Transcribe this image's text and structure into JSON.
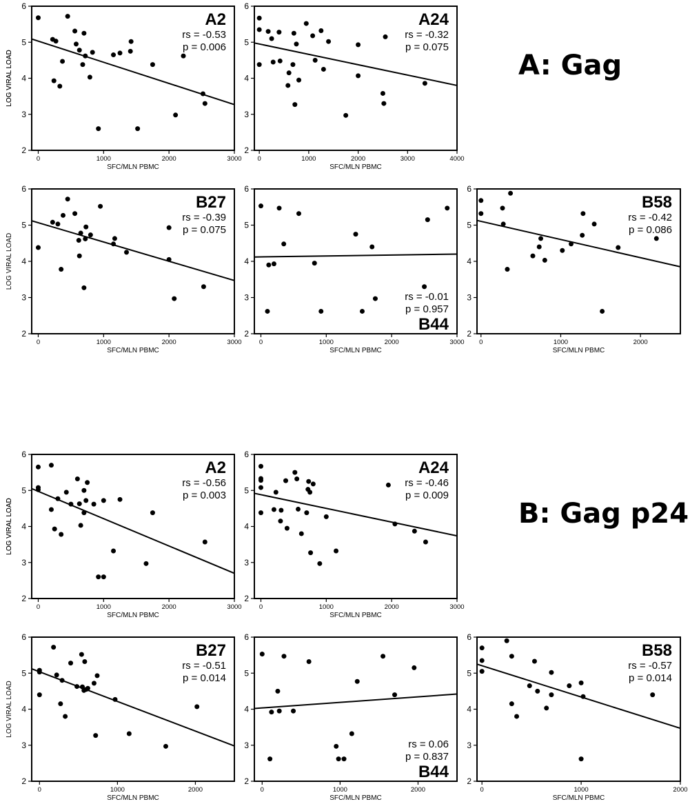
{
  "sections": {
    "a": {
      "title": "A: Gag"
    },
    "b": {
      "title": "B: Gag p24"
    }
  },
  "chart_data": [
    {
      "type": "scatter",
      "section": "A: Gag",
      "panel_label": "A2",
      "stats": [
        "rs = -0.53",
        "p = 0.006"
      ],
      "xlabel": "SFC/MLN PBMC",
      "ylabel": "LOG VIRAL LOAD",
      "xlim": [
        -100,
        3000
      ],
      "ylim": [
        2,
        6
      ],
      "xticks": [
        0,
        1000,
        2000,
        3000
      ],
      "yticks": [
        2,
        3,
        4,
        5,
        6
      ],
      "points": [
        [
          0,
          5.68
        ],
        [
          220,
          5.08
        ],
        [
          270,
          5.03
        ],
        [
          240,
          3.93
        ],
        [
          330,
          3.78
        ],
        [
          370,
          4.47
        ],
        [
          450,
          5.72
        ],
        [
          560,
          5.31
        ],
        [
          580,
          4.95
        ],
        [
          630,
          4.78
        ],
        [
          680,
          4.38
        ],
        [
          700,
          5.25
        ],
        [
          720,
          4.62
        ],
        [
          790,
          4.03
        ],
        [
          830,
          4.72
        ],
        [
          920,
          2.6
        ],
        [
          1150,
          4.65
        ],
        [
          1250,
          4.7
        ],
        [
          1410,
          4.75
        ],
        [
          1420,
          5.02
        ],
        [
          1520,
          2.6
        ],
        [
          1750,
          4.38
        ],
        [
          2100,
          2.98
        ],
        [
          2220,
          4.62
        ],
        [
          2520,
          3.57
        ],
        [
          2550,
          3.3
        ]
      ],
      "fit": [
        [
          -100,
          5.09
        ],
        [
          3000,
          3.27
        ]
      ]
    },
    {
      "type": "scatter",
      "section": "A: Gag",
      "panel_label": "A24",
      "stats": [
        "rs = -0.32",
        "p = 0.075"
      ],
      "xlabel": "SFC/MLN PBMC",
      "ylabel": "LOG VIRAL LOAD",
      "xlim": [
        -100,
        4000
      ],
      "ylim": [
        2,
        6
      ],
      "xticks": [
        0,
        1000,
        2000,
        3000,
        4000
      ],
      "yticks": [
        2,
        3,
        4,
        5,
        6
      ],
      "points": [
        [
          0,
          5.67
        ],
        [
          0,
          5.35
        ],
        [
          0,
          4.38
        ],
        [
          180,
          5.3
        ],
        [
          250,
          5.1
        ],
        [
          280,
          4.45
        ],
        [
          400,
          5.28
        ],
        [
          420,
          4.48
        ],
        [
          580,
          3.8
        ],
        [
          600,
          4.15
        ],
        [
          680,
          4.38
        ],
        [
          700,
          5.25
        ],
        [
          720,
          3.27
        ],
        [
          750,
          4.95
        ],
        [
          800,
          3.95
        ],
        [
          950,
          5.52
        ],
        [
          1080,
          5.18
        ],
        [
          1130,
          4.5
        ],
        [
          1250,
          5.32
        ],
        [
          1300,
          4.25
        ],
        [
          1400,
          5.02
        ],
        [
          1750,
          2.97
        ],
        [
          2000,
          4.93
        ],
        [
          2000,
          4.07
        ],
        [
          2500,
          3.58
        ],
        [
          2520,
          3.3
        ],
        [
          2550,
          5.15
        ],
        [
          3350,
          3.86
        ]
      ],
      "fit": [
        [
          -100,
          4.98
        ],
        [
          4000,
          3.8
        ]
      ]
    },
    {
      "type": "scatter",
      "section": "A: Gag",
      "panel_label": "B27",
      "stats": [
        "rs = -0.39",
        "p = 0.075"
      ],
      "xlabel": "SFC/MLN PBMC",
      "ylabel": "LOG VIRAL LOAD",
      "xlim": [
        -100,
        3000
      ],
      "ylim": [
        2,
        6
      ],
      "xticks": [
        0,
        1000,
        2000,
        3000
      ],
      "yticks": [
        2,
        3,
        4,
        5,
        6
      ],
      "points": [
        [
          0,
          4.38
        ],
        [
          220,
          5.08
        ],
        [
          300,
          5.03
        ],
        [
          350,
          3.78
        ],
        [
          380,
          5.27
        ],
        [
          450,
          5.72
        ],
        [
          560,
          5.32
        ],
        [
          620,
          4.58
        ],
        [
          630,
          4.15
        ],
        [
          650,
          4.78
        ],
        [
          700,
          3.27
        ],
        [
          720,
          4.62
        ],
        [
          730,
          4.95
        ],
        [
          800,
          4.73
        ],
        [
          950,
          5.52
        ],
        [
          1150,
          4.48
        ],
        [
          1170,
          4.63
        ],
        [
          1350,
          4.25
        ],
        [
          2000,
          4.93
        ],
        [
          2000,
          4.05
        ],
        [
          2080,
          2.97
        ],
        [
          2530,
          3.3
        ]
      ],
      "fit": [
        [
          -100,
          5.12
        ],
        [
          3000,
          3.47
        ]
      ]
    },
    {
      "type": "scatter",
      "section": "A: Gag",
      "panel_label": "B44",
      "stats": [
        "rs = -0.01",
        "p = 0.957"
      ],
      "xlabel": "SFC/MLN PBMC",
      "ylabel": "",
      "xlim": [
        -100,
        3000
      ],
      "ylim": [
        2,
        6
      ],
      "xticks": [
        0,
        1000,
        2000,
        3000
      ],
      "yticks": [
        2,
        3,
        4,
        5,
        6
      ],
      "points": [
        [
          0,
          5.53
        ],
        [
          100,
          2.62
        ],
        [
          120,
          3.9
        ],
        [
          200,
          3.93
        ],
        [
          280,
          5.47
        ],
        [
          350,
          4.48
        ],
        [
          580,
          5.32
        ],
        [
          820,
          3.95
        ],
        [
          920,
          2.62
        ],
        [
          1450,
          4.75
        ],
        [
          1550,
          2.62
        ],
        [
          1700,
          4.4
        ],
        [
          1750,
          2.97
        ],
        [
          2500,
          3.3
        ],
        [
          2550,
          5.15
        ],
        [
          2850,
          5.47
        ]
      ],
      "fit": [
        [
          -100,
          4.12
        ],
        [
          3000,
          4.2
        ]
      ]
    },
    {
      "type": "scatter",
      "section": "A: Gag",
      "panel_label": "B58",
      "stats": [
        "rs = -0.42",
        "p = 0.086"
      ],
      "xlabel": "SFC/MLN PBMC",
      "ylabel": "",
      "xlim": [
        -50,
        2500
      ],
      "ylim": [
        2,
        6
      ],
      "xticks": [
        0,
        1000,
        2000
      ],
      "yticks": [
        2,
        3,
        4,
        5,
        6
      ],
      "points": [
        [
          0,
          5.68
        ],
        [
          0,
          5.32
        ],
        [
          270,
          5.47
        ],
        [
          280,
          5.03
        ],
        [
          330,
          3.78
        ],
        [
          370,
          5.88
        ],
        [
          650,
          4.15
        ],
        [
          730,
          4.4
        ],
        [
          750,
          4.63
        ],
        [
          800,
          4.03
        ],
        [
          1020,
          4.3
        ],
        [
          1130,
          4.48
        ],
        [
          1270,
          4.72
        ],
        [
          1280,
          5.32
        ],
        [
          1420,
          5.03
        ],
        [
          1520,
          2.62
        ],
        [
          1720,
          4.38
        ],
        [
          2200,
          4.63
        ]
      ],
      "fit": [
        [
          -50,
          5.13
        ],
        [
          2500,
          3.85
        ]
      ]
    },
    {
      "type": "scatter",
      "section": "B: Gag p24",
      "panel_label": "A2",
      "stats": [
        "rs = -0.56",
        "p = 0.003"
      ],
      "xlabel": "SFC/MLN PBMC",
      "ylabel": "LOG VIRAL LOAD",
      "xlim": [
        -100,
        3000
      ],
      "ylim": [
        2,
        6
      ],
      "xticks": [
        0,
        1000,
        2000,
        3000
      ],
      "yticks": [
        2,
        3,
        4,
        5,
        6
      ],
      "points": [
        [
          0,
          5.65
        ],
        [
          0,
          5.08
        ],
        [
          0,
          5.02
        ],
        [
          200,
          5.7
        ],
        [
          200,
          4.47
        ],
        [
          250,
          3.93
        ],
        [
          300,
          4.77
        ],
        [
          350,
          3.78
        ],
        [
          430,
          4.95
        ],
        [
          500,
          4.62
        ],
        [
          600,
          5.32
        ],
        [
          630,
          4.63
        ],
        [
          650,
          4.03
        ],
        [
          700,
          4.38
        ],
        [
          700,
          5.0
        ],
        [
          730,
          4.72
        ],
        [
          750,
          5.22
        ],
        [
          850,
          4.62
        ],
        [
          920,
          2.6
        ],
        [
          1000,
          2.6
        ],
        [
          1000,
          4.72
        ],
        [
          1150,
          3.32
        ],
        [
          1250,
          4.75
        ],
        [
          1650,
          2.97
        ],
        [
          1750,
          4.38
        ],
        [
          2550,
          3.57
        ]
      ],
      "fit": [
        [
          -100,
          5.05
        ],
        [
          3000,
          2.7
        ]
      ]
    },
    {
      "type": "scatter",
      "section": "B: Gag p24",
      "panel_label": "A24",
      "stats": [
        "rs = -0.46",
        "p = 0.009"
      ],
      "xlabel": "SFC/MLN PBMC",
      "ylabel": "LOG VIRAL LOAD",
      "xlim": [
        -100,
        3000
      ],
      "ylim": [
        2,
        6
      ],
      "xticks": [
        0,
        1000,
        2000,
        3000
      ],
      "yticks": [
        2,
        3,
        4,
        5,
        6
      ],
      "points": [
        [
          0,
          5.67
        ],
        [
          0,
          5.33
        ],
        [
          0,
          5.28
        ],
        [
          0,
          5.08
        ],
        [
          0,
          4.38
        ],
        [
          200,
          4.47
        ],
        [
          230,
          4.95
        ],
        [
          300,
          4.15
        ],
        [
          310,
          4.45
        ],
        [
          380,
          5.27
        ],
        [
          400,
          3.95
        ],
        [
          520,
          5.5
        ],
        [
          550,
          5.32
        ],
        [
          570,
          4.48
        ],
        [
          620,
          3.8
        ],
        [
          700,
          4.38
        ],
        [
          720,
          5.03
        ],
        [
          730,
          5.25
        ],
        [
          750,
          4.95
        ],
        [
          760,
          3.27
        ],
        [
          800,
          5.18
        ],
        [
          900,
          2.97
        ],
        [
          1000,
          4.27
        ],
        [
          1150,
          3.32
        ],
        [
          1950,
          5.15
        ],
        [
          2050,
          4.07
        ],
        [
          2350,
          3.87
        ],
        [
          2520,
          3.57
        ]
      ],
      "fit": [
        [
          -100,
          4.92
        ],
        [
          3000,
          3.74
        ]
      ]
    },
    {
      "type": "scatter",
      "section": "B: Gag p24",
      "panel_label": "B27",
      "stats": [
        "rs = -0.51",
        "p = 0.014"
      ],
      "xlabel": "SFC/MLN PBMC",
      "ylabel": "LOG VIRAL LOAD",
      "xlim": [
        -100,
        2500
      ],
      "ylim": [
        2,
        6
      ],
      "xticks": [
        0,
        1000,
        2000
      ],
      "yticks": [
        2,
        3,
        4,
        5,
        6
      ],
      "points": [
        [
          0,
          5.08
        ],
        [
          0,
          5.03
        ],
        [
          0,
          4.4
        ],
        [
          180,
          5.72
        ],
        [
          220,
          4.95
        ],
        [
          270,
          4.15
        ],
        [
          290,
          4.8
        ],
        [
          330,
          3.8
        ],
        [
          400,
          5.28
        ],
        [
          480,
          4.63
        ],
        [
          540,
          5.52
        ],
        [
          550,
          4.62
        ],
        [
          570,
          4.52
        ],
        [
          580,
          5.32
        ],
        [
          600,
          4.55
        ],
        [
          620,
          4.58
        ],
        [
          700,
          4.72
        ],
        [
          720,
          3.27
        ],
        [
          740,
          4.93
        ],
        [
          970,
          4.27
        ],
        [
          1150,
          3.32
        ],
        [
          1620,
          2.97
        ],
        [
          2020,
          4.07
        ]
      ],
      "fit": [
        [
          -100,
          5.12
        ],
        [
          2500,
          2.98
        ]
      ]
    },
    {
      "type": "scatter",
      "section": "B: Gag p24",
      "panel_label": "B44",
      "stats": [
        "rs = 0.06",
        "p = 0.837"
      ],
      "xlabel": "SFC/MLN PBMC",
      "ylabel": "",
      "xlim": [
        -100,
        2500
      ],
      "ylim": [
        2,
        6
      ],
      "xticks": [
        0,
        1000,
        2000
      ],
      "yticks": [
        2,
        3,
        4,
        5,
        6
      ],
      "points": [
        [
          0,
          5.53
        ],
        [
          100,
          2.62
        ],
        [
          120,
          3.92
        ],
        [
          200,
          4.5
        ],
        [
          220,
          3.95
        ],
        [
          280,
          5.47
        ],
        [
          400,
          3.95
        ],
        [
          600,
          5.32
        ],
        [
          950,
          2.97
        ],
        [
          980,
          2.62
        ],
        [
          1050,
          2.62
        ],
        [
          1150,
          3.32
        ],
        [
          1220,
          4.77
        ],
        [
          1550,
          5.47
        ],
        [
          1700,
          4.4
        ],
        [
          1950,
          5.15
        ]
      ],
      "fit": [
        [
          -100,
          4.02
        ],
        [
          2500,
          4.42
        ]
      ]
    },
    {
      "type": "scatter",
      "section": "B: Gag p24",
      "panel_label": "B58",
      "stats": [
        "rs = -0.57",
        "p = 0.014"
      ],
      "xlabel": "SFC/MLN PBMC",
      "ylabel": "",
      "xlim": [
        -50,
        2000
      ],
      "ylim": [
        2,
        6
      ],
      "xticks": [
        0,
        1000,
        2000
      ],
      "yticks": [
        2,
        3,
        4,
        5,
        6
      ],
      "points": [
        [
          0,
          5.7
        ],
        [
          0,
          5.35
        ],
        [
          0,
          5.05
        ],
        [
          250,
          5.9
        ],
        [
          300,
          5.47
        ],
        [
          300,
          4.15
        ],
        [
          350,
          3.8
        ],
        [
          480,
          4.65
        ],
        [
          530,
          5.33
        ],
        [
          560,
          4.5
        ],
        [
          650,
          4.03
        ],
        [
          700,
          4.4
        ],
        [
          700,
          5.02
        ],
        [
          880,
          4.65
        ],
        [
          1000,
          4.73
        ],
        [
          1000,
          2.62
        ],
        [
          1020,
          4.35
        ],
        [
          1720,
          4.4
        ]
      ],
      "fit": [
        [
          -50,
          5.25
        ],
        [
          2000,
          3.47
        ]
      ]
    }
  ]
}
